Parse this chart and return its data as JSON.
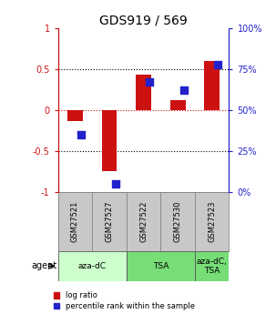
{
  "title": "GDS919 / 569",
  "samples": [
    "GSM27521",
    "GSM27527",
    "GSM27522",
    "GSM27530",
    "GSM27523"
  ],
  "log_ratio": [
    -0.13,
    -0.75,
    0.43,
    0.12,
    0.6
  ],
  "percentile_rank": [
    0.35,
    0.05,
    0.67,
    0.62,
    0.78
  ],
  "bar_color": "#cc1111",
  "dot_color": "#2222cc",
  "ylim_left": [
    -1,
    1
  ],
  "yticks_left": [
    -1,
    -0.5,
    0,
    0.5,
    1
  ],
  "ytick_labels_left": [
    "-1",
    "-0.5",
    "0",
    "0.5",
    "1"
  ],
  "yticks_right": [
    0,
    0.25,
    0.5,
    0.75,
    1.0
  ],
  "ytick_labels_right": [
    "0%",
    "25%",
    "50%",
    "75%",
    "100%"
  ],
  "agent_groups": [
    {
      "label": "aza-dC",
      "start": 0,
      "end": 2,
      "color": "#ccffcc"
    },
    {
      "label": "TSA",
      "start": 2,
      "end": 4,
      "color": "#77dd77"
    },
    {
      "label": "aza-dC,\nTSA",
      "start": 4,
      "end": 5,
      "color": "#77dd77"
    }
  ],
  "bg_color": "white",
  "bar_width": 0.45,
  "dot_size": 28
}
